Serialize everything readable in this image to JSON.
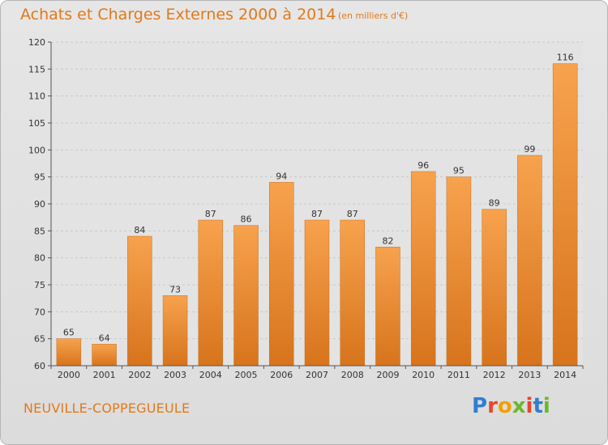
{
  "chart_data": {
    "type": "bar",
    "title": "Achats et Charges Externes 2000 à 2014",
    "subtitle": "(en milliers d'€)",
    "categories": [
      "2000",
      "2001",
      "2002",
      "2003",
      "2004",
      "2005",
      "2006",
      "2007",
      "2008",
      "2009",
      "2010",
      "2011",
      "2012",
      "2013",
      "2014"
    ],
    "values": [
      65,
      64,
      84,
      73,
      87,
      86,
      94,
      87,
      87,
      82,
      96,
      95,
      89,
      99,
      116
    ],
    "ylim": [
      60,
      120
    ],
    "yticks": [
      60,
      65,
      70,
      75,
      80,
      85,
      90,
      95,
      100,
      105,
      110,
      115,
      120
    ],
    "grid": true,
    "bar_color": "#f08c2c",
    "xlabel": "",
    "ylabel": ""
  },
  "commune": "NEUVILLE-COPPEGUEULE",
  "logo": {
    "letters": [
      "P",
      "r",
      "o",
      "x",
      "i",
      "t",
      "i"
    ],
    "colors": [
      "#2f7fd1",
      "#e8452e",
      "#f2a100",
      "#6cb82e",
      "#e8452e",
      "#2f7fd1",
      "#6cb82e"
    ]
  }
}
